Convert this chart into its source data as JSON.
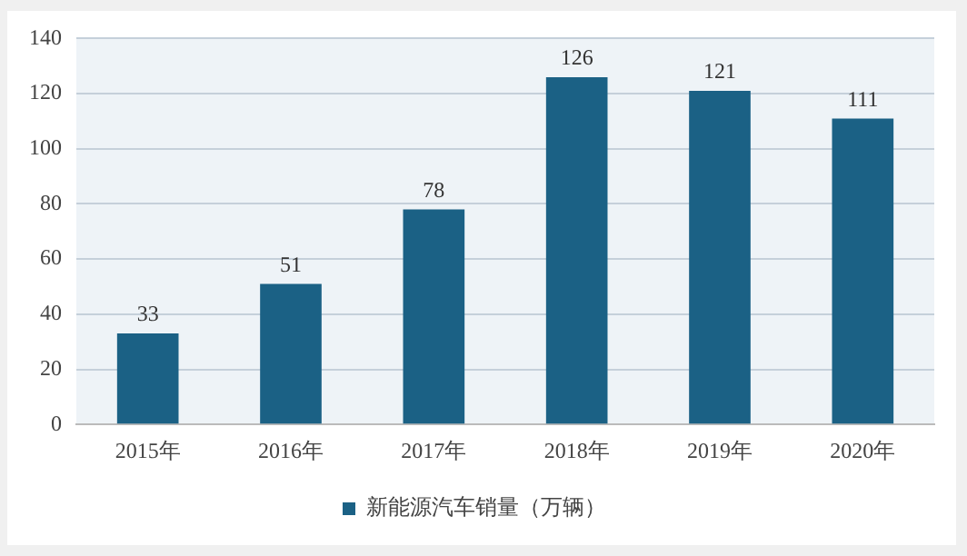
{
  "chart_data": {
    "type": "bar",
    "categories": [
      "2015年",
      "2016年",
      "2017年",
      "2018年",
      "2019年",
      "2020年"
    ],
    "series": [
      {
        "name": "新能源汽车销量（万辆）",
        "color": "#1b6185",
        "values": [
          33,
          51,
          78,
          126,
          121,
          111
        ]
      }
    ],
    "ylim": [
      0,
      140
    ],
    "yticks": [
      0,
      20,
      40,
      60,
      80,
      100,
      120,
      140
    ],
    "grid": "y",
    "legend": "bottom",
    "data_labels": true
  }
}
